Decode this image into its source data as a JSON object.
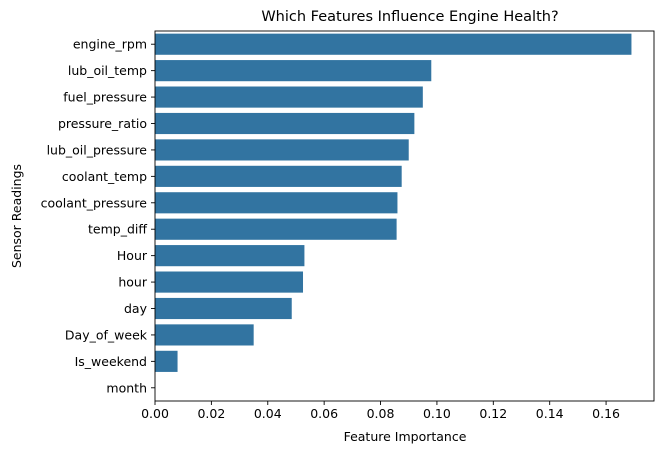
{
  "chart_data": {
    "type": "bar",
    "orientation": "horizontal",
    "title": "Which Features Influence Engine Health?",
    "xlabel": "Feature Importance",
    "ylabel": "Sensor Readings",
    "xlim": [
      0,
      0.177
    ],
    "xticks": [
      "0.00",
      "0.02",
      "0.04",
      "0.06",
      "0.08",
      "0.10",
      "0.12",
      "0.14",
      "0.16"
    ],
    "xtick_values": [
      0,
      0.02,
      0.04,
      0.06,
      0.08,
      0.1,
      0.12,
      0.14,
      0.16
    ],
    "categories": [
      "engine_rpm",
      "lub_oil_temp",
      "fuel_pressure",
      "pressure_ratio",
      "lub_oil_pressure",
      "coolant_temp",
      "coolant_pressure",
      "temp_diff",
      "Hour",
      "hour",
      "day",
      "Day_of_week",
      "Is_weekend",
      "month"
    ],
    "values": [
      0.169,
      0.098,
      0.095,
      0.092,
      0.09,
      0.0875,
      0.086,
      0.0857,
      0.053,
      0.0525,
      0.0485,
      0.035,
      0.008,
      0.0
    ],
    "bar_color": "#3274a1",
    "grid": false,
    "legend": "none"
  }
}
